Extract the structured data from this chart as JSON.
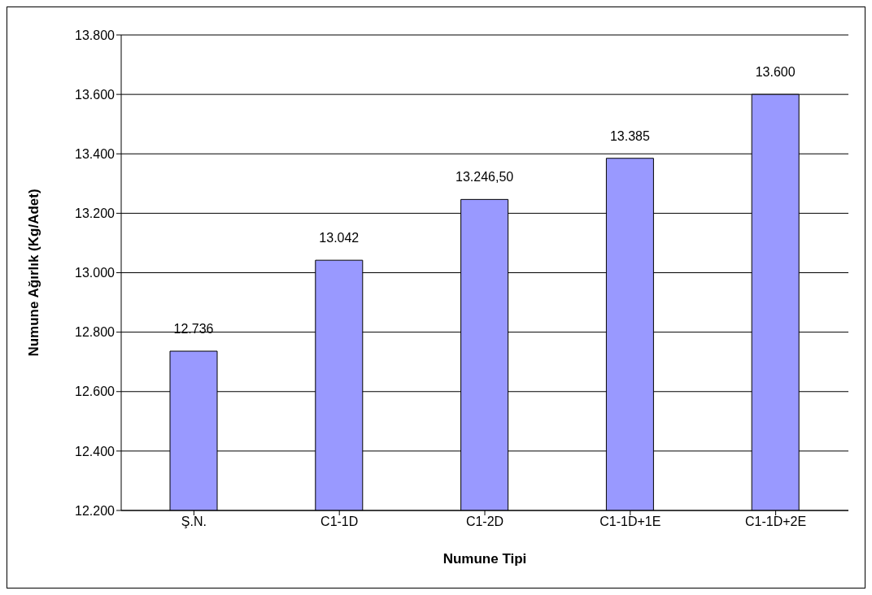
{
  "chart_data": {
    "type": "bar",
    "xlabel": "Numune Tipi",
    "ylabel": "Numune Ağırlık (Kg/Adet)",
    "categories": [
      "Ş.N.",
      "C1-1D",
      "C1-2D",
      "C1-1D+1E",
      "C1-1D+2E"
    ],
    "values": [
      12736,
      13042,
      13246.5,
      13385,
      13600
    ],
    "value_labels": [
      "12.736",
      "13.042",
      "13.246,50",
      "13.385",
      "13.600"
    ],
    "color": "#9999ff",
    "ylim": [
      12200,
      13800
    ],
    "yticks": [
      {
        "value": 12200,
        "label": "12.200"
      },
      {
        "value": 12400,
        "label": "12.400"
      },
      {
        "value": 12600,
        "label": "12.600"
      },
      {
        "value": 12800,
        "label": "12.800"
      },
      {
        "value": 13000,
        "label": "13.000"
      },
      {
        "value": 13200,
        "label": "13.200"
      },
      {
        "value": 13400,
        "label": "13.400"
      },
      {
        "value": 13600,
        "label": "13.600"
      },
      {
        "value": 13800,
        "label": "13.800"
      }
    ],
    "grid": "y"
  }
}
